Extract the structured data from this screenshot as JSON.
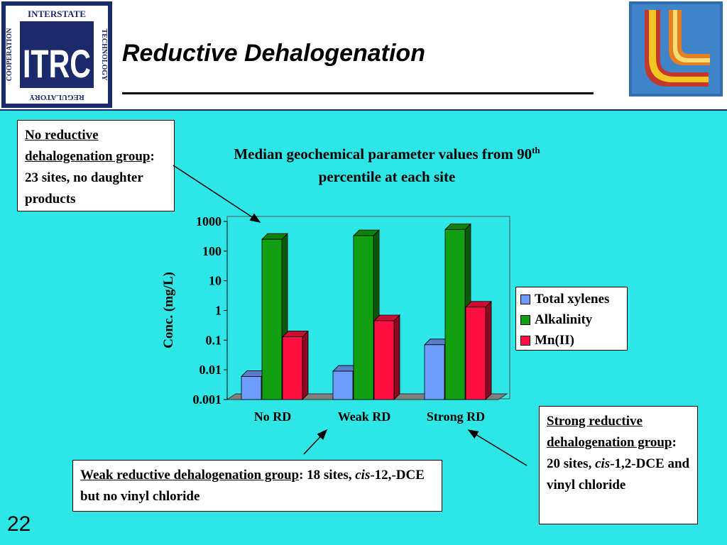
{
  "header": {
    "title": "Reductive Dehalogenation",
    "logo": {
      "main": "ITRC",
      "top": "INTERSTATE",
      "right": "TECHNOLOGY",
      "bottom": "REGULATORY",
      "left": "COOPERATION"
    }
  },
  "callouts": {
    "no_rd": {
      "heading": "No reductive dehalogenation group",
      "text": ": 23 sites, no daughter products"
    },
    "weak_rd": {
      "heading": "Weak reductive dehalogenation group",
      "text_a": ": 18 sites, ",
      "italic": "cis",
      "text_b": "-12,-DCE but no vinyl chloride"
    },
    "strong_rd": {
      "heading": "Strong reductive dehalogenation group",
      "text_a": ": 20 sites, ",
      "italic": "cis",
      "text_b": "-1,2-DCE and vinyl chloride"
    }
  },
  "page_number": "22",
  "colors": {
    "background": "#2ee6e6",
    "total_xylenes": "#6f9dff",
    "alkalinity": "#11a011",
    "mn": "#ff1040"
  },
  "chart_data": {
    "type": "bar",
    "title_main": "Median geochemical parameter values from 90",
    "title_sup": "th",
    "title_rest": "percentile at each site",
    "ylabel": "Conc. (mg/L)",
    "xlabel": "",
    "yscale": "log",
    "ylim": [
      0.001,
      1000
    ],
    "yticks": [
      "1000",
      "100",
      "10",
      "1",
      "0.1",
      "0.01",
      "0.001"
    ],
    "categories": [
      "No RD",
      "Weak RD",
      "Strong RD"
    ],
    "series": [
      {
        "name": "Total xylenes",
        "values": [
          0.006,
          0.009,
          0.07
        ]
      },
      {
        "name": "Alkalinity",
        "values": [
          250,
          330,
          530
        ]
      },
      {
        "name": "Mn(II)",
        "values": [
          0.13,
          0.45,
          1.3
        ]
      }
    ],
    "legend": "right",
    "grid": false
  }
}
